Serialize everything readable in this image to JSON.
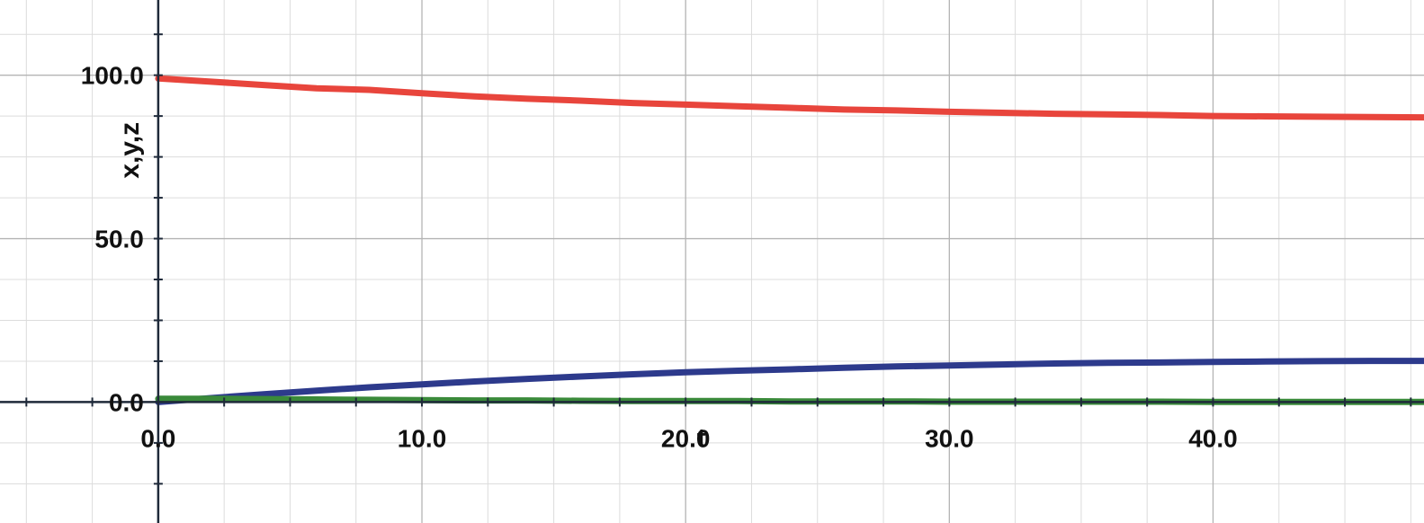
{
  "chart_data": {
    "type": "line",
    "title": "",
    "xlabel": "t",
    "ylabel": "x,y,z",
    "xlim": [
      -6,
      48
    ],
    "ylim": [
      -37,
      123
    ],
    "x_ticks": [
      0,
      10,
      20,
      30,
      40
    ],
    "x_tick_labels": [
      "0.0",
      "10.0",
      "20.0",
      "30.0",
      "40.0"
    ],
    "y_ticks": [
      0,
      50,
      100
    ],
    "y_tick_labels": [
      "0.0",
      "50.0",
      "100.0"
    ],
    "grid": true,
    "x": [
      0,
      2,
      4,
      6,
      8,
      10,
      12,
      14,
      16,
      18,
      20,
      22,
      24,
      26,
      28,
      30,
      32,
      34,
      36,
      38,
      40,
      42,
      44,
      46,
      48
    ],
    "series": [
      {
        "color": "#e8453c",
        "values": [
          99,
          98,
          97,
          96,
          95.5,
          94.5,
          93.5,
          92.8,
          92.2,
          91.5,
          91,
          90.5,
          90,
          89.5,
          89.2,
          88.8,
          88.5,
          88.2,
          88,
          87.8,
          87.5,
          87.4,
          87.3,
          87.2,
          87.1
        ]
      },
      {
        "color": "#2d3a8c",
        "values": [
          0,
          1.2,
          2.4,
          3.5,
          4.5,
          5.4,
          6.3,
          7.1,
          7.8,
          8.5,
          9.1,
          9.6,
          10,
          10.5,
          10.9,
          11.2,
          11.5,
          11.8,
          12,
          12.1,
          12.3,
          12.4,
          12.5,
          12.6,
          12.6
        ]
      },
      {
        "color": "#3a8a3a",
        "values": [
          1,
          1,
          0.9,
          0.8,
          0.7,
          0.6,
          0.5,
          0.5,
          0.4,
          0.3,
          0.3,
          0.3,
          0.2,
          0.2,
          0.2,
          0.1,
          0.1,
          0.1,
          0.1,
          0.1,
          0.05,
          0.05,
          0.05,
          0.05,
          0.05
        ]
      }
    ]
  }
}
